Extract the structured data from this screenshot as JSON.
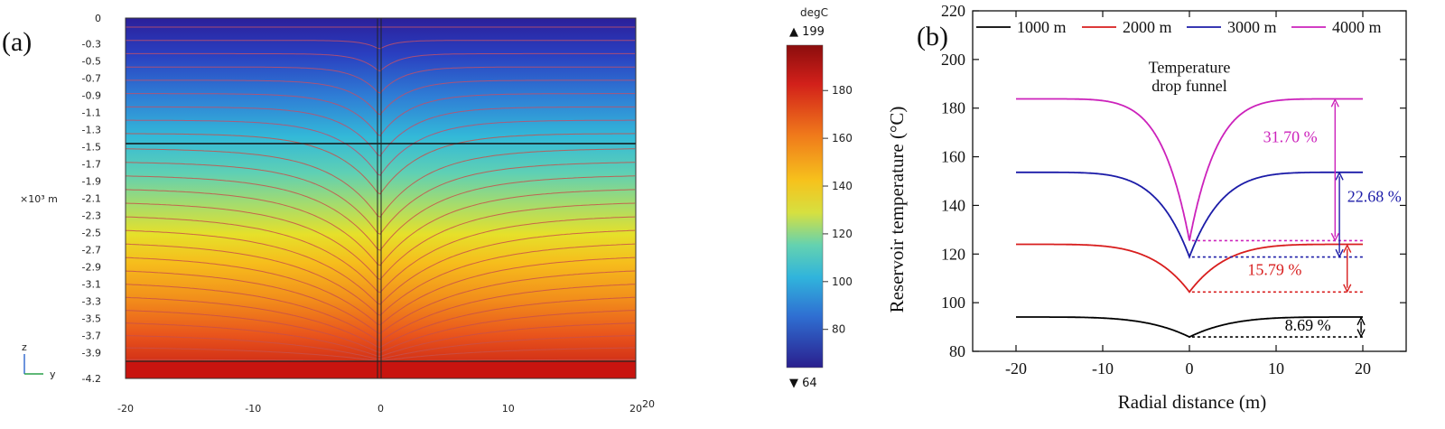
{
  "panel_a": {
    "label": "(a)",
    "unit_label": "×10³ m",
    "z_ticks": [
      "0",
      "-0.3",
      "-0.5",
      "-0.7",
      "-0.9",
      "-1.1",
      "-1.3",
      "-1.5",
      "-1.7",
      "-1.9",
      "-2.1",
      "-2.3",
      "-2.5",
      "-2.7",
      "-2.9",
      "-3.1",
      "-3.3",
      "-3.5",
      "-3.7",
      "-3.9",
      "-4.2"
    ],
    "y_ticks": [
      "-20",
      "-10",
      "0",
      "10",
      "20"
    ],
    "y_tick_extra": "20",
    "axis_z": "z",
    "axis_y": "y",
    "colorbar": {
      "unit": "degC",
      "max_label": "▲ 199",
      "min_label": "▼ 64",
      "ticks": [
        "180",
        "160",
        "140",
        "120",
        "100",
        "80"
      ]
    }
  },
  "chart_data": {
    "type": "line",
    "panel_label": "(b)",
    "xlabel": "Radial distance (m)",
    "ylabel": "Reservoir temperature (°C)",
    "xlim": [
      -25,
      25
    ],
    "ylim": [
      80,
      220
    ],
    "x_ticks": [
      -20,
      -10,
      0,
      10,
      20
    ],
    "y_ticks": [
      80,
      100,
      120,
      140,
      160,
      180,
      200,
      220
    ],
    "legend_position": "top",
    "annotation": [
      "Temperature",
      "drop funnel"
    ],
    "series": [
      {
        "name": "1000 m",
        "color": "#000000",
        "far_temp": 94.1,
        "center_temp": 85.9,
        "drop_label": "8.69 %",
        "label_color": "#000000"
      },
      {
        "name": "2000 m",
        "color": "#d81e1e",
        "far_temp": 124.0,
        "center_temp": 104.4,
        "drop_label": "15.79 %",
        "label_color": "#d81e1e"
      },
      {
        "name": "3000 m",
        "color": "#1c1ca8",
        "far_temp": 153.6,
        "center_temp": 118.8,
        "drop_label": "22.68 %",
        "label_color": "#1c1ca8"
      },
      {
        "name": "4000 m",
        "color": "#cc22bb",
        "far_temp": 183.8,
        "center_temp": 125.5,
        "drop_label": "31.70 %",
        "label_color": "#cc22bb"
      }
    ]
  }
}
